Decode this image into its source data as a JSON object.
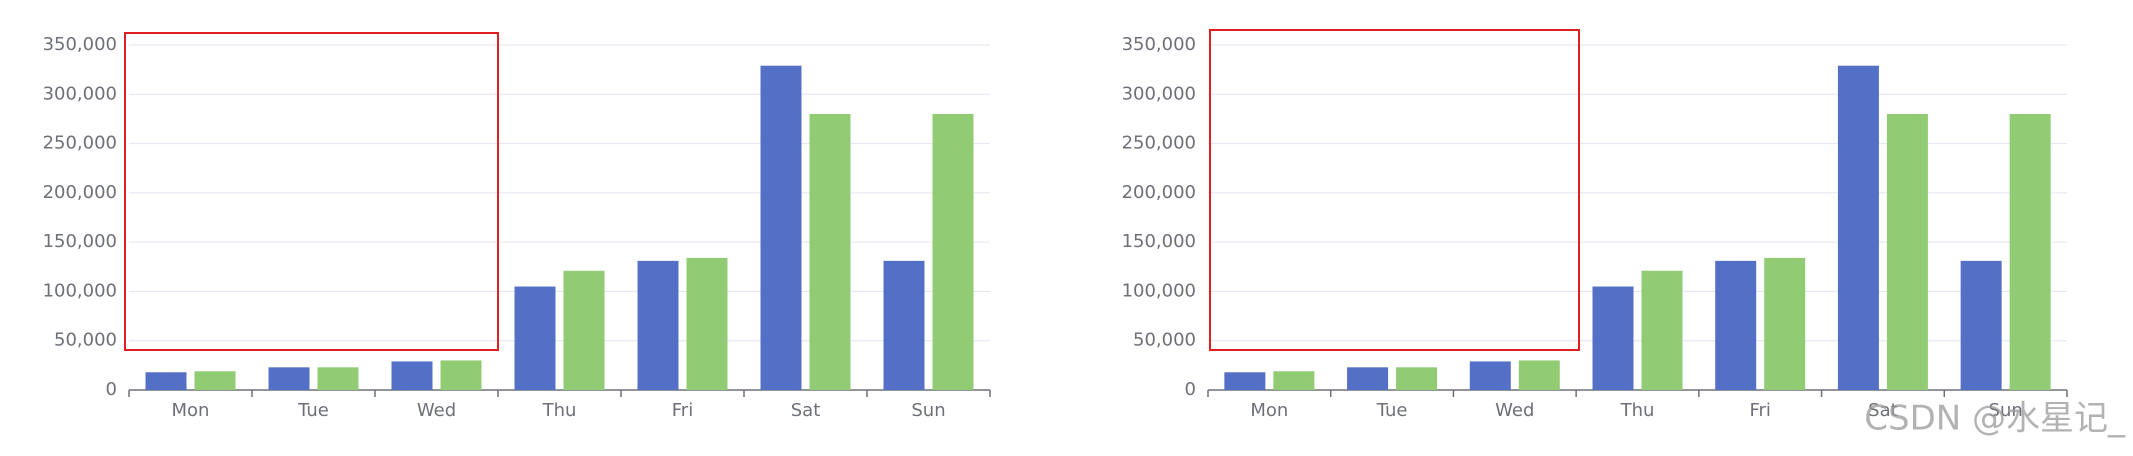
{
  "chart_data": [
    {
      "type": "bar",
      "categories": [
        "Mon",
        "Tue",
        "Wed",
        "Thu",
        "Fri",
        "Sat",
        "Sun"
      ],
      "series": [
        {
          "color": "#5470c6",
          "values": [
            18000,
            23000,
            29000,
            105000,
            131000,
            329000,
            131000
          ]
        },
        {
          "color": "#91cc75",
          "values": [
            19000,
            23000,
            30000,
            121000,
            134000,
            280000,
            280000
          ]
        }
      ],
      "ylim": [
        0,
        350000
      ],
      "yticks": [
        0,
        {
          "value": 50000,
          "label": "50,000"
        },
        {
          "value": 100000,
          "label": "100,000"
        },
        {
          "value": 150000,
          "label": "150,000"
        },
        {
          "value": 200000,
          "label": "200,000"
        },
        {
          "value": 250000,
          "label": "250,000"
        },
        {
          "value": 300000,
          "label": "300,000"
        },
        {
          "value": 350000,
          "label": "350,000"
        }
      ],
      "grid": true
    },
    {
      "type": "bar",
      "categories": [
        "Mon",
        "Tue",
        "Wed",
        "Thu",
        "Fri",
        "Sat",
        "Sun"
      ],
      "series": [
        {
          "color": "#5470c6",
          "values": [
            18000,
            23000,
            29000,
            105000,
            131000,
            329000,
            131000
          ]
        },
        {
          "color": "#91cc75",
          "values": [
            19000,
            23000,
            30000,
            121000,
            134000,
            280000,
            280000
          ]
        }
      ],
      "ylim": [
        0,
        350000
      ],
      "yticks": [
        0,
        {
          "value": 50000,
          "label": "50,000"
        },
        {
          "value": 100000,
          "label": "100,000"
        },
        {
          "value": 150000,
          "label": "150,000"
        },
        {
          "value": 200000,
          "label": "200,000"
        },
        {
          "value": 250000,
          "label": "250,000"
        },
        {
          "value": 300000,
          "label": "300,000"
        },
        {
          "value": 350000,
          "label": "350,000"
        }
      ],
      "grid": true
    }
  ],
  "watermark": "CSDN @水星记_"
}
